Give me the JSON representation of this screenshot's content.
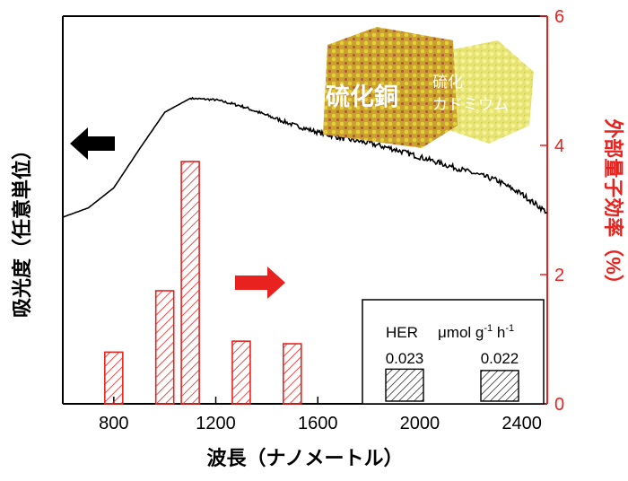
{
  "chart_data": {
    "type": "bar",
    "xlabel": "波長（ナノメートル）",
    "ylabel_left": "吸光度（任意単位）",
    "ylabel_right": "外部量子効率（%）",
    "xlim": [
      600,
      2500
    ],
    "ylim_right": [
      0,
      6
    ],
    "x_ticks": [
      800,
      1200,
      1600,
      2000,
      2400
    ],
    "y_ticks_right": [
      0,
      2,
      4,
      6
    ],
    "grid": false,
    "series": [
      {
        "type": "bar",
        "axis": "right",
        "color": "#e8231f",
        "pattern": "diagonal-hatch",
        "x": [
          800,
          1000,
          1100,
          1300,
          1500
        ],
        "values": [
          0.8,
          1.75,
          3.75,
          0.97,
          0.93
        ]
      },
      {
        "type": "line",
        "axis": "left",
        "color": "#000000",
        "x": [
          600,
          700,
          800,
          900,
          1000,
          1100,
          1200,
          1300,
          1400,
          1500,
          1600,
          1700,
          1800,
          1900,
          2000,
          2100,
          2200,
          2300,
          2400,
          2500
        ],
        "values": [
          0.0,
          0.06,
          0.19,
          0.44,
          0.68,
          0.77,
          0.76,
          0.72,
          0.66,
          0.6,
          0.55,
          0.51,
          0.48,
          0.44,
          0.39,
          0.34,
          0.29,
          0.24,
          0.15,
          0.03
        ]
      }
    ],
    "arrows": [
      {
        "color": "#000000",
        "direction": "left"
      },
      {
        "color": "#e8231f",
        "direction": "right"
      }
    ],
    "inset": {
      "header": "HER",
      "unit_prefix": "μmol g",
      "unit_exp1": "-1",
      "unit_mid": " h",
      "unit_exp2": "-1",
      "values": [
        0.023,
        0.022
      ],
      "value_labels": [
        "0.023",
        "0.022"
      ]
    },
    "image_labels": {
      "left": "硫化銅",
      "right_line1": "硫化",
      "right_line2": "カドミウム"
    }
  }
}
